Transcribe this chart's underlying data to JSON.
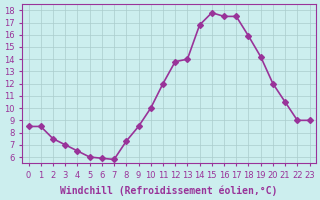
{
  "x": [
    0,
    1,
    2,
    3,
    4,
    5,
    6,
    7,
    8,
    9,
    10,
    11,
    12,
    13,
    14,
    15,
    16,
    17,
    18,
    19,
    20,
    21,
    22,
    23
  ],
  "y": [
    8.5,
    8.5,
    7.5,
    7.0,
    6.5,
    6.0,
    5.9,
    5.8,
    7.3,
    8.5,
    10.0,
    12.0,
    13.8,
    14.0,
    16.8,
    17.8,
    17.5,
    17.5,
    15.9,
    14.2,
    12.0,
    10.5,
    9.0,
    9.0
  ],
  "line_color": "#993399",
  "marker": "D",
  "marker_size": 3,
  "linewidth": 1.2,
  "bg_color": "#cceeee",
  "grid_color": "#aacccc",
  "xlabel": "Windchill (Refroidissement éolien,°C)",
  "ylabel_ticks": [
    6,
    7,
    8,
    9,
    10,
    11,
    12,
    13,
    14,
    15,
    16,
    17,
    18
  ],
  "xlim": [
    -0.5,
    23.5
  ],
  "ylim": [
    5.5,
    18.5
  ],
  "xlabel_color": "#993399",
  "tick_color": "#993399",
  "font_size": 7
}
